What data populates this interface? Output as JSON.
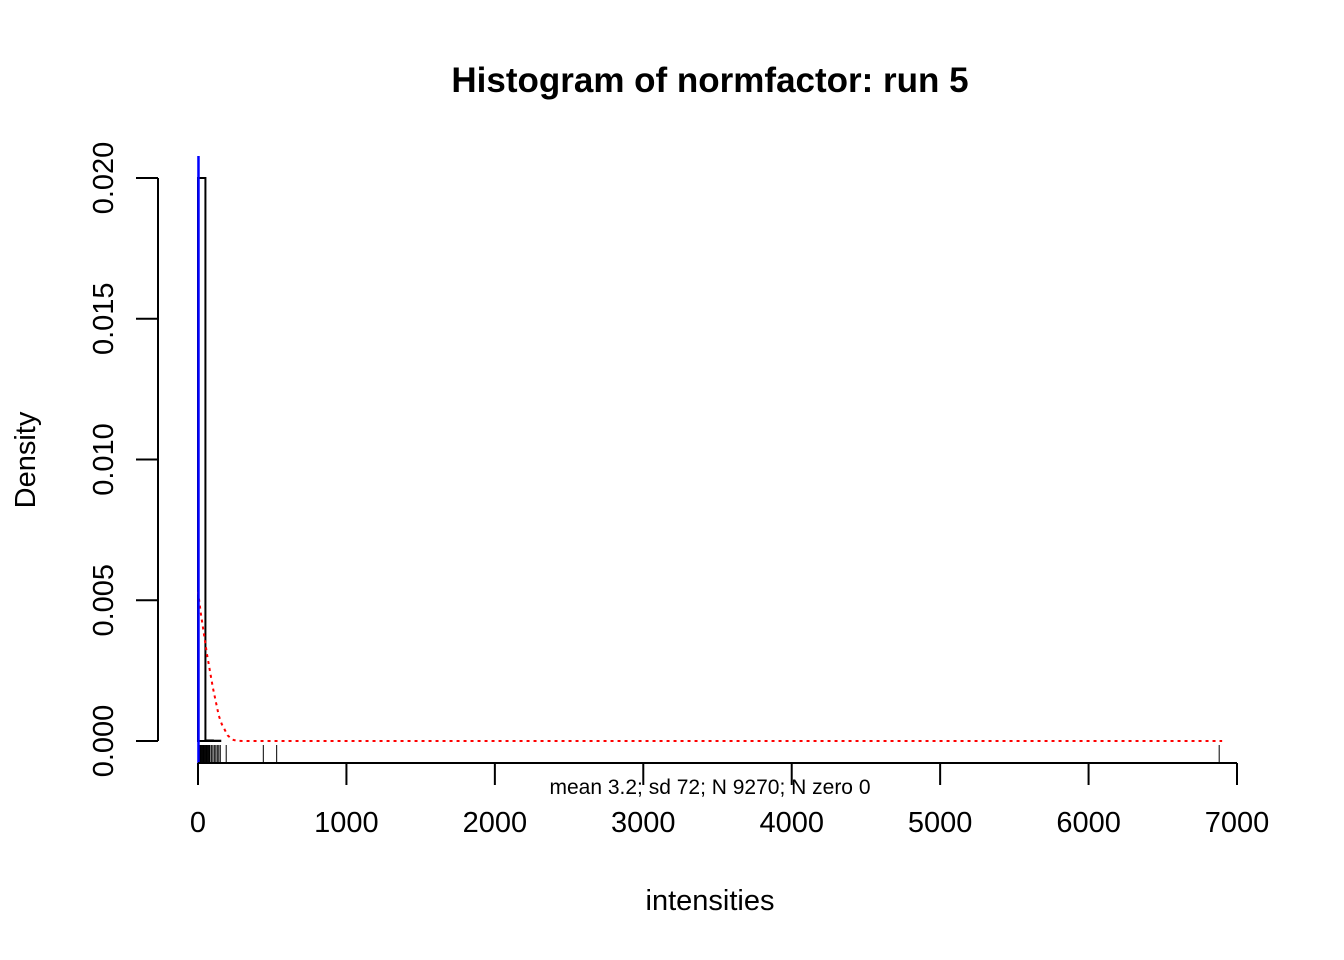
{
  "chart_data": {
    "type": "histogram",
    "title": "Histogram of normfactor: run  5",
    "xlabel": "intensities",
    "ylabel": "Density",
    "stats_text": "mean 3.2; sd 72; N 9270; N zero 0",
    "xlim": [
      0,
      7000
    ],
    "ylim": [
      0,
      0.02
    ],
    "x_ticks": [
      0,
      1000,
      2000,
      3000,
      4000,
      5000,
      6000,
      7000
    ],
    "x_tick_labels": [
      "0",
      "1000",
      "2000",
      "3000",
      "4000",
      "5000",
      "6000",
      "7000"
    ],
    "y_ticks": [
      0,
      0.005,
      0.01,
      0.015,
      0.02
    ],
    "y_tick_labels": [
      "0.000",
      "0.005",
      "0.010",
      "0.015",
      "0.020"
    ],
    "bins": [
      {
        "x0": 0,
        "x1": 50,
        "density": 0.02
      },
      {
        "x0": 50,
        "x1": 100,
        "density": 2e-05
      },
      {
        "x0": 100,
        "x1": 150,
        "density": 1e-05
      },
      {
        "x0": 150,
        "x1": 6900,
        "density": 0.0
      }
    ],
    "density_curve": {
      "x": [
        0,
        20,
        40,
        60,
        80,
        100,
        120,
        140,
        160,
        180,
        200,
        230,
        260,
        300,
        6900
      ],
      "y": [
        0.0053,
        0.0045,
        0.0038,
        0.0031,
        0.0025,
        0.0019,
        0.0014,
        0.0009,
        0.0006,
        0.0004,
        0.0002,
        5e-05,
        1e-05,
        0.0,
        0.0
      ]
    },
    "mean_line_x": 3.2,
    "rug_x": [
      0,
      5,
      10,
      15,
      20,
      25,
      30,
      35,
      40,
      45,
      50,
      55,
      60,
      65,
      70,
      75,
      80,
      90,
      100,
      110,
      120,
      130,
      140,
      150,
      190,
      440,
      530,
      6880
    ],
    "colors": {
      "bars": "#000000",
      "density_curve": "#ff0000",
      "mean_line": "#0000ff",
      "rug": "#000000"
    }
  }
}
